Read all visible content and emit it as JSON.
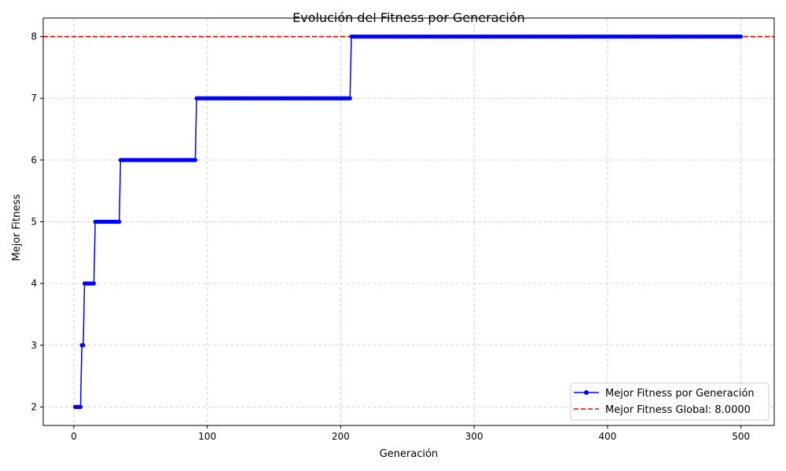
{
  "chart_data": {
    "type": "line",
    "title": "Evolución del Fitness por Generación",
    "xlabel": "Generación",
    "ylabel": "Mejor Fitness",
    "xlim": [
      -22.95,
      524.95
    ],
    "ylim": [
      1.7,
      8.3
    ],
    "xticks": [
      0,
      100,
      200,
      300,
      400,
      500
    ],
    "yticks": [
      2,
      3,
      4,
      5,
      6,
      7,
      8
    ],
    "grid": true,
    "legend_position": "lower-right",
    "series": [
      {
        "name": "Mejor Fitness por Generación",
        "color": "#0000ff",
        "marker": "circle",
        "step_changes": [
          {
            "start": 1,
            "end": 5,
            "value": 2
          },
          {
            "start": 6,
            "end": 7,
            "value": 3
          },
          {
            "start": 8,
            "end": 15,
            "value": 4
          },
          {
            "start": 16,
            "end": 34,
            "value": 5
          },
          {
            "start": 35,
            "end": 91,
            "value": 6
          },
          {
            "start": 92,
            "end": 207,
            "value": 7
          },
          {
            "start": 208,
            "end": 500,
            "value": 8
          }
        ]
      }
    ],
    "reference_line": {
      "name": "Mejor Fitness Global: 8.0000",
      "value": 8,
      "color": "#ff0000",
      "style": "dashed"
    }
  }
}
